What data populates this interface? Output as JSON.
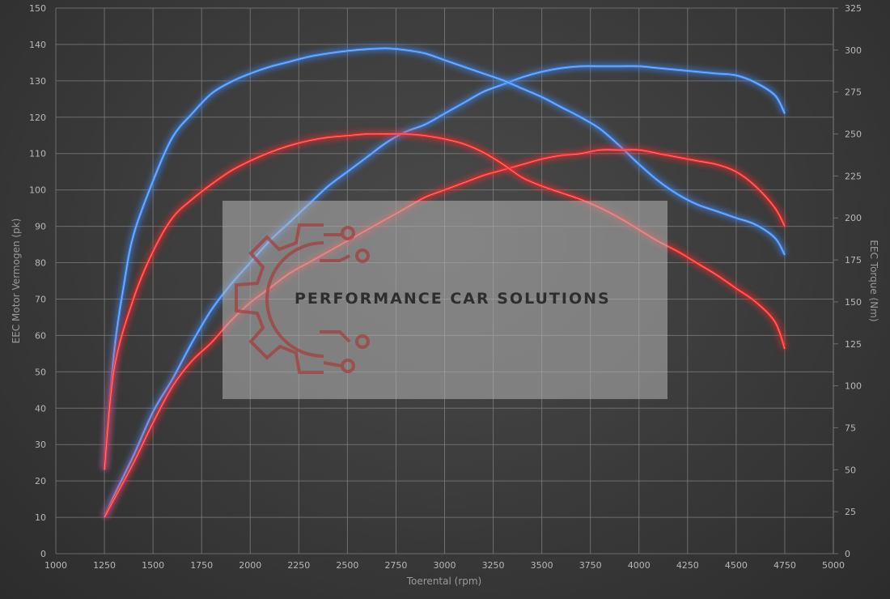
{
  "chart_data": {
    "type": "line",
    "xlabel": "Toerental (rpm)",
    "ylabel_left": "EEC Motor Vermogen (pk)",
    "ylabel_right": "EEC Torque (Nm)",
    "xlim": [
      1000,
      5000
    ],
    "ylim_left": [
      0,
      150
    ],
    "ylim_right": [
      0,
      325
    ],
    "x_ticks": [
      1000,
      1250,
      1500,
      1750,
      2000,
      2250,
      2500,
      2750,
      3000,
      3250,
      3500,
      3750,
      4000,
      4250,
      4500,
      4750,
      5000
    ],
    "y_ticks_left": [
      0,
      10,
      20,
      30,
      40,
      50,
      60,
      70,
      80,
      90,
      100,
      110,
      120,
      130,
      140,
      150
    ],
    "y_ticks_right": [
      0,
      25,
      50,
      75,
      100,
      125,
      150,
      175,
      200,
      225,
      250,
      275,
      300,
      325
    ],
    "grid": true,
    "series": [
      {
        "axis": "left",
        "color": "#3f8fff",
        "points": [
          [
            1250,
            10
          ],
          [
            1300,
            16
          ],
          [
            1400,
            27
          ],
          [
            1500,
            39
          ],
          [
            1600,
            48
          ],
          [
            1700,
            58
          ],
          [
            1800,
            67
          ],
          [
            1900,
            74
          ],
          [
            2000,
            80
          ],
          [
            2100,
            86
          ],
          [
            2200,
            91
          ],
          [
            2300,
            96
          ],
          [
            2400,
            101
          ],
          [
            2500,
            105
          ],
          [
            2600,
            109
          ],
          [
            2700,
            113
          ],
          [
            2800,
            116
          ],
          [
            2900,
            118
          ],
          [
            3000,
            121
          ],
          [
            3100,
            124
          ],
          [
            3200,
            127
          ],
          [
            3300,
            129
          ],
          [
            3400,
            131
          ],
          [
            3500,
            132.5
          ],
          [
            3600,
            133.5
          ],
          [
            3700,
            134
          ],
          [
            3800,
            134
          ],
          [
            3900,
            134
          ],
          [
            4000,
            134
          ],
          [
            4100,
            133.5
          ],
          [
            4200,
            133
          ],
          [
            4300,
            132.5
          ],
          [
            4400,
            132
          ],
          [
            4500,
            131.5
          ],
          [
            4600,
            129.5
          ],
          [
            4700,
            126
          ],
          [
            4750,
            121
          ]
        ]
      },
      {
        "axis": "right",
        "color": "#3f8fff",
        "points": [
          [
            1250,
            50
          ],
          [
            1300,
            120
          ],
          [
            1350,
            160
          ],
          [
            1400,
            190
          ],
          [
            1500,
            222
          ],
          [
            1600,
            248
          ],
          [
            1700,
            262
          ],
          [
            1800,
            274
          ],
          [
            1900,
            281
          ],
          [
            2000,
            286
          ],
          [
            2100,
            290
          ],
          [
            2200,
            293
          ],
          [
            2300,
            296
          ],
          [
            2400,
            298
          ],
          [
            2500,
            299.5
          ],
          [
            2600,
            300.5
          ],
          [
            2700,
            301
          ],
          [
            2800,
            300
          ],
          [
            2900,
            298
          ],
          [
            3000,
            294
          ],
          [
            3100,
            290
          ],
          [
            3200,
            286
          ],
          [
            3300,
            282
          ],
          [
            3400,
            277
          ],
          [
            3500,
            272
          ],
          [
            3600,
            266
          ],
          [
            3700,
            260
          ],
          [
            3800,
            253
          ],
          [
            3900,
            243
          ],
          [
            4000,
            232
          ],
          [
            4100,
            222
          ],
          [
            4200,
            214
          ],
          [
            4300,
            208
          ],
          [
            4400,
            204
          ],
          [
            4500,
            200
          ],
          [
            4600,
            196
          ],
          [
            4700,
            188
          ],
          [
            4750,
            178
          ]
        ]
      },
      {
        "axis": "left",
        "color": "#ff2a2a",
        "points": [
          [
            1250,
            10
          ],
          [
            1300,
            15
          ],
          [
            1400,
            25
          ],
          [
            1500,
            36
          ],
          [
            1600,
            46
          ],
          [
            1700,
            53
          ],
          [
            1800,
            58
          ],
          [
            1900,
            64
          ],
          [
            2000,
            69
          ],
          [
            2100,
            73
          ],
          [
            2200,
            77
          ],
          [
            2300,
            80
          ],
          [
            2400,
            83
          ],
          [
            2500,
            86
          ],
          [
            2600,
            89
          ],
          [
            2700,
            92
          ],
          [
            2800,
            95
          ],
          [
            2900,
            98
          ],
          [
            3000,
            100
          ],
          [
            3100,
            102
          ],
          [
            3200,
            104
          ],
          [
            3300,
            105.5
          ],
          [
            3400,
            107
          ],
          [
            3500,
            108.5
          ],
          [
            3600,
            109.5
          ],
          [
            3700,
            110
          ],
          [
            3800,
            111
          ],
          [
            3900,
            111
          ],
          [
            4000,
            111
          ],
          [
            4100,
            110
          ],
          [
            4200,
            109
          ],
          [
            4300,
            108
          ],
          [
            4400,
            107
          ],
          [
            4500,
            105
          ],
          [
            4600,
            101
          ],
          [
            4700,
            95
          ],
          [
            4750,
            90
          ]
        ]
      },
      {
        "axis": "right",
        "color": "#ff2a2a",
        "points": [
          [
            1250,
            50
          ],
          [
            1300,
            110
          ],
          [
            1400,
            152
          ],
          [
            1500,
            180
          ],
          [
            1600,
            200
          ],
          [
            1700,
            211
          ],
          [
            1800,
            220
          ],
          [
            1900,
            228
          ],
          [
            2000,
            234
          ],
          [
            2100,
            239
          ],
          [
            2200,
            243
          ],
          [
            2300,
            246
          ],
          [
            2400,
            248
          ],
          [
            2500,
            249
          ],
          [
            2600,
            250
          ],
          [
            2700,
            250
          ],
          [
            2800,
            250
          ],
          [
            2900,
            249
          ],
          [
            3000,
            247
          ],
          [
            3100,
            244
          ],
          [
            3200,
            239
          ],
          [
            3300,
            232
          ],
          [
            3400,
            224
          ],
          [
            3500,
            219
          ],
          [
            3600,
            215
          ],
          [
            3700,
            211
          ],
          [
            3800,
            206
          ],
          [
            3900,
            200
          ],
          [
            4000,
            193
          ],
          [
            4100,
            186
          ],
          [
            4200,
            180
          ],
          [
            4300,
            173
          ],
          [
            4400,
            166
          ],
          [
            4500,
            158
          ],
          [
            4600,
            150
          ],
          [
            4700,
            138
          ],
          [
            4750,
            122
          ]
        ]
      }
    ]
  },
  "watermark": {
    "text": "PERFORMANCE CAR SOLUTIONS"
  }
}
